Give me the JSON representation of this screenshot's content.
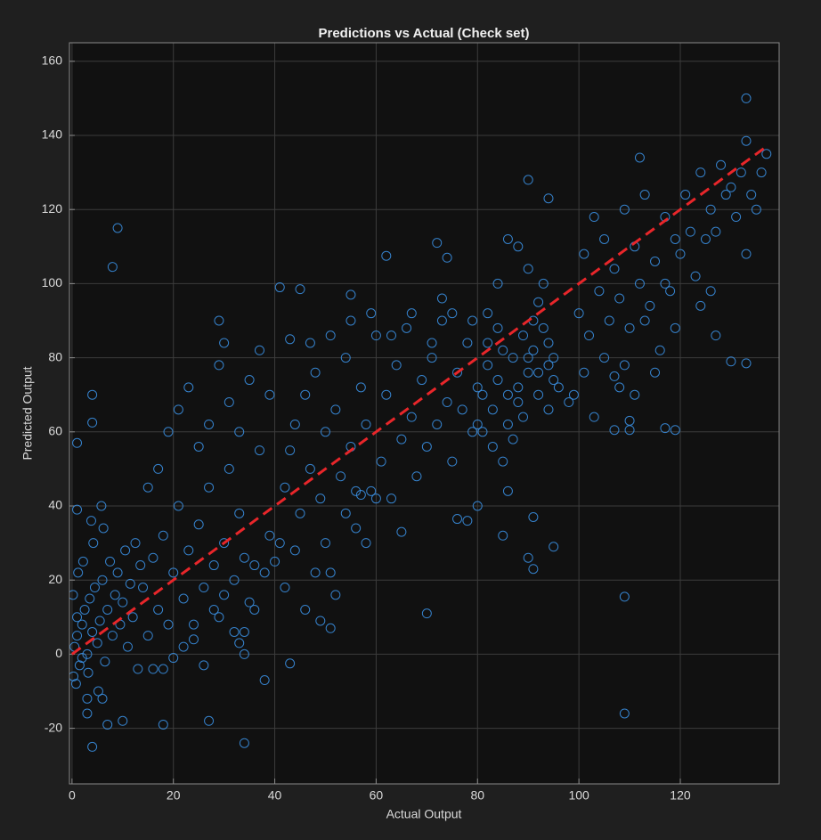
{
  "chart_data": {
    "type": "scatter",
    "title": "Predictions vs Actual (Check set)",
    "x_label": "Actual Output",
    "y_label": "Predicted Output",
    "xlim": [
      -0.5,
      139.5
    ],
    "ylim": [
      -35,
      165
    ],
    "xticks": [
      0,
      20,
      40,
      60,
      80,
      100,
      120
    ],
    "yticks": [
      -20,
      0,
      20,
      40,
      60,
      80,
      100,
      120,
      140,
      160
    ],
    "grid": true,
    "series": [
      {
        "color": "#3a8ee0",
        "x": [
          0.5,
          1,
          1.5,
          2,
          2.5,
          3,
          3.5,
          0.3,
          1,
          2,
          4,
          4.5,
          5,
          5.5,
          6,
          6.5,
          7,
          7.5,
          8,
          8.5,
          9,
          9.5,
          10,
          10.5,
          11,
          11.5,
          12,
          12.5,
          13,
          13.5,
          0.2,
          0.8,
          1.2,
          2.2,
          3.2,
          4.2,
          5.2,
          6.2,
          3.8,
          5.8,
          14,
          15,
          16,
          17,
          18,
          19,
          20,
          21,
          22,
          23,
          24,
          25,
          26,
          27,
          28,
          29,
          30,
          31,
          32,
          33,
          34,
          35,
          36,
          37,
          38,
          39,
          40,
          15,
          17,
          19,
          21,
          23,
          25,
          27,
          29,
          31,
          33,
          35,
          37,
          39,
          16,
          18,
          20,
          22,
          24,
          26,
          28,
          30,
          32,
          36,
          41,
          42,
          43,
          44,
          45,
          46,
          47,
          48,
          49,
          50,
          51,
          52,
          53,
          54,
          55,
          56,
          57,
          58,
          59,
          60,
          61,
          62,
          63,
          64,
          65,
          66,
          67,
          68,
          69,
          70,
          71,
          72,
          73,
          74,
          75,
          76,
          77,
          78,
          79,
          80,
          42,
          44,
          46,
          48,
          50,
          52,
          54,
          56,
          58,
          60,
          43,
          47,
          51,
          55,
          59,
          63,
          67,
          71,
          75,
          79,
          81,
          82,
          83,
          84,
          85,
          86,
          87,
          88,
          89,
          90,
          91,
          92,
          93,
          94,
          95,
          81,
          83,
          85,
          87,
          89,
          91,
          92,
          93,
          90,
          88,
          86,
          84,
          82,
          94,
          95,
          80,
          82,
          84,
          86,
          88,
          90,
          92,
          94,
          96,
          98,
          100,
          101,
          102,
          103,
          104,
          105,
          106,
          107,
          108,
          109,
          110,
          111,
          112,
          113,
          114,
          115,
          116,
          117,
          118,
          119,
          120,
          121,
          122,
          123,
          124,
          125,
          126,
          127,
          128,
          129,
          130,
          131,
          132,
          133,
          134,
          135,
          136,
          137,
          99,
          101,
          103,
          105,
          107,
          109,
          111,
          113,
          115,
          117,
          119,
          126,
          9,
          8,
          133,
          133,
          112,
          109,
          109,
          70,
          34,
          4,
          18,
          27,
          3,
          7,
          10,
          43,
          62,
          72,
          74,
          90,
          94,
          41,
          45,
          55,
          73,
          1,
          4,
          4,
          1,
          51,
          49,
          85,
          91,
          95,
          90,
          91,
          130,
          133,
          127,
          124,
          119,
          117,
          107,
          110,
          110,
          108,
          80,
          76,
          78,
          86,
          29,
          30,
          33,
          34,
          34,
          38,
          3,
          6,
          57,
          65
        ],
        "values": [
          2,
          5,
          -3,
          8,
          12,
          0,
          15,
          -6,
          10,
          -1,
          6,
          18,
          3,
          9,
          20,
          -2,
          12,
          25,
          5,
          16,
          22,
          8,
          14,
          28,
          2,
          19,
          10,
          30,
          -4,
          24,
          16,
          -8,
          22,
          25,
          -5,
          30,
          -10,
          34,
          36,
          40,
          18,
          5,
          26,
          12,
          32,
          8,
          22,
          40,
          15,
          28,
          4,
          35,
          18,
          45,
          24,
          10,
          30,
          50,
          20,
          38,
          26,
          14,
          24,
          55,
          22,
          32,
          25,
          45,
          50,
          60,
          66,
          72,
          56,
          62,
          78,
          68,
          60,
          74,
          82,
          70,
          -4,
          -4,
          -1,
          2,
          8,
          -3,
          12,
          16,
          6,
          12,
          30,
          45,
          55,
          62,
          38,
          70,
          50,
          76,
          42,
          60,
          22,
          66,
          48,
          80,
          56,
          34,
          72,
          62,
          44,
          86,
          52,
          70,
          42,
          78,
          58,
          88,
          64,
          48,
          74,
          56,
          80,
          62,
          90,
          68,
          52,
          76,
          66,
          84,
          60,
          72,
          18,
          28,
          12,
          22,
          30,
          16,
          38,
          44,
          30,
          42,
          85,
          84,
          86,
          90,
          92,
          86,
          92,
          84,
          92,
          90,
          70,
          78,
          66,
          74,
          82,
          62,
          80,
          72,
          86,
          76,
          82,
          70,
          88,
          78,
          74,
          60,
          56,
          52,
          58,
          64,
          90,
          95,
          100,
          104,
          110,
          112,
          100,
          92,
          84,
          80,
          62,
          84,
          88,
          70,
          68,
          80,
          76,
          66,
          72,
          68,
          92,
          108,
          86,
          118,
          98,
          112,
          90,
          104,
          96,
          120,
          88,
          110,
          100,
          124,
          94,
          106,
          82,
          118,
          98,
          112,
          108,
          124,
          114,
          102,
          130,
          112,
          120,
          114,
          132,
          124,
          126,
          118,
          130,
          108,
          124,
          120,
          130,
          135,
          70,
          76,
          64,
          80,
          75,
          78,
          70,
          90,
          76,
          100,
          88,
          98,
          115,
          104.5,
          150,
          138.5,
          134,
          -16,
          15.5,
          11,
          -24,
          -25,
          -19,
          -18,
          -16,
          -19,
          -18,
          -2.5,
          107.5,
          111,
          107,
          128,
          123,
          99,
          98.5,
          97,
          96,
          57,
          70,
          62.5,
          39,
          7,
          9,
          32,
          37,
          29,
          26,
          23,
          79,
          78.5,
          86,
          94,
          60.5,
          61,
          60.5,
          60.5,
          63,
          72,
          40,
          36.5,
          36,
          44,
          90,
          84,
          3,
          0,
          6,
          -7,
          -12,
          -12,
          43,
          33
        ]
      }
    ],
    "reference_line": {
      "x": [
        0,
        137
      ],
      "y": [
        0,
        137
      ],
      "color": "#e8262a"
    }
  }
}
